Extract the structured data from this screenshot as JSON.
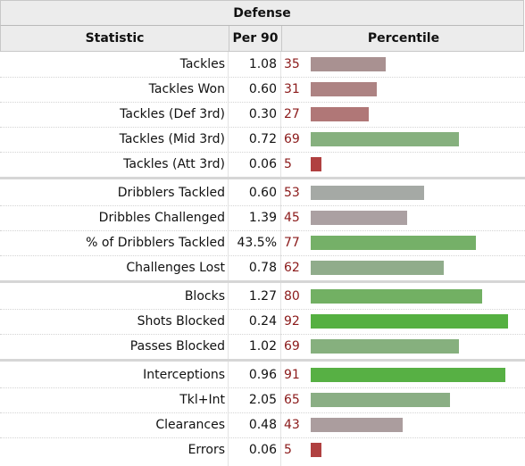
{
  "table": {
    "title": "Defense",
    "headers": {
      "statistic": "Statistic",
      "per90": "Per 90",
      "percentile": "Percentile"
    },
    "groups": [
      [
        {
          "stat": "Tackles",
          "per90": "1.08",
          "pct": "35",
          "pct_value": 35,
          "color": "#a99191"
        },
        {
          "stat": "Tackles Won",
          "per90": "0.60",
          "pct": "31",
          "pct_value": 31,
          "color": "#ad8383"
        },
        {
          "stat": "Tackles (Def 3rd)",
          "per90": "0.30",
          "pct": "27",
          "pct_value": 27,
          "color": "#b07777"
        },
        {
          "stat": "Tackles (Mid 3rd)",
          "per90": "0.72",
          "pct": "69",
          "pct_value": 69,
          "color": "#86b07e"
        },
        {
          "stat": "Tackles (Att 3rd)",
          "per90": "0.06",
          "pct": "5",
          "pct_value": 5,
          "color": "#b04040"
        }
      ],
      [
        {
          "stat": "Dribblers Tackled",
          "per90": "0.60",
          "pct": "53",
          "pct_value": 53,
          "color": "#a5a9a5"
        },
        {
          "stat": "Dribbles Challenged",
          "per90": "1.39",
          "pct": "45",
          "pct_value": 45,
          "color": "#aba0a2"
        },
        {
          "stat": "% of Dribblers Tackled",
          "per90": "43.5%",
          "pct": "77",
          "pct_value": 77,
          "color": "#75b068"
        },
        {
          "stat": "Challenges Lost",
          "per90": "0.78",
          "pct": "62",
          "pct_value": 62,
          "color": "#90ac8b"
        }
      ],
      [
        {
          "stat": "Blocks",
          "per90": "1.27",
          "pct": "80",
          "pct_value": 80,
          "color": "#72b063"
        },
        {
          "stat": "Shots Blocked",
          "per90": "0.24",
          "pct": "92",
          "pct_value": 92,
          "color": "#55b041"
        },
        {
          "stat": "Passes Blocked",
          "per90": "1.02",
          "pct": "69",
          "pct_value": 69,
          "color": "#86b07e"
        }
      ],
      [
        {
          "stat": "Interceptions",
          "per90": "0.96",
          "pct": "91",
          "pct_value": 91,
          "color": "#57b044"
        },
        {
          "stat": "Tkl+Int",
          "per90": "2.05",
          "pct": "65",
          "pct_value": 65,
          "color": "#8aae84"
        },
        {
          "stat": "Clearances",
          "per90": "0.48",
          "pct": "43",
          "pct_value": 43,
          "color": "#ab9d9e"
        },
        {
          "stat": "Errors",
          "per90": "0.06",
          "pct": "5",
          "pct_value": 5,
          "color": "#b04040"
        }
      ]
    ]
  }
}
